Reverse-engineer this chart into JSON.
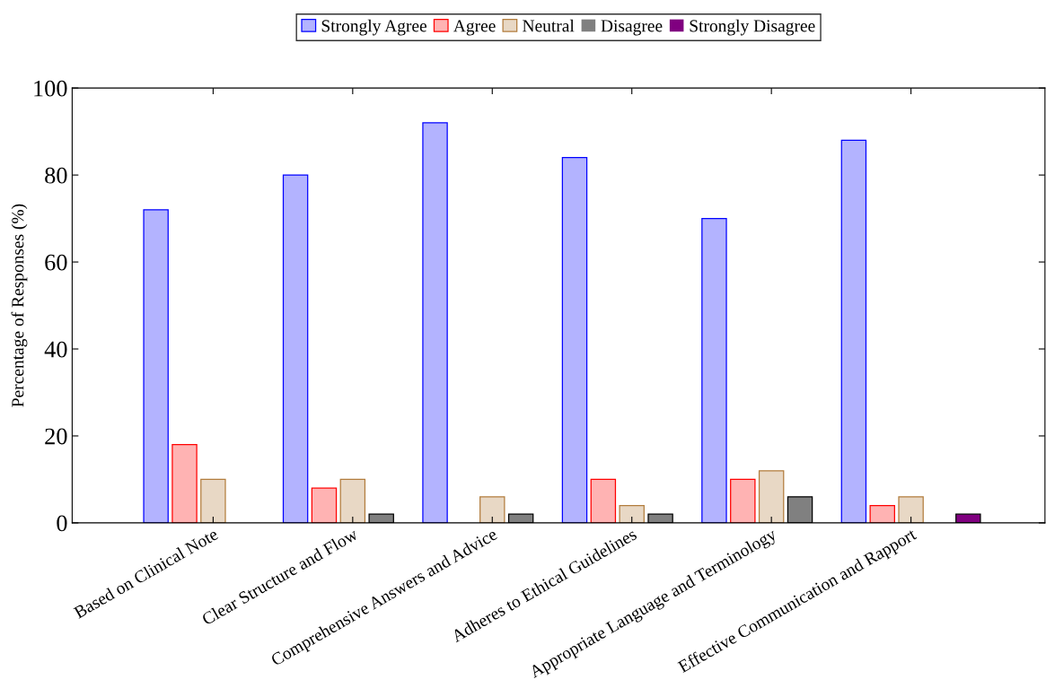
{
  "chart_data": {
    "type": "bar",
    "ylabel": "Percentage of Responses (%)",
    "categories": [
      "Based on Clinical Note",
      "Clear Structure and Flow",
      "Comprehensive Answers and Advice",
      "Adheres to Ethical Guidelines",
      "Appropriate Language and Terminology",
      "Effective Communication and Rapport"
    ],
    "series": [
      {
        "name": "Strongly Agree",
        "color": "#b3b3ff",
        "values": [
          72,
          80,
          92,
          84,
          70,
          88
        ]
      },
      {
        "name": "Agree",
        "color": "#ffb3b3",
        "values": [
          18,
          8,
          0,
          10,
          10,
          4
        ]
      },
      {
        "name": "Neutral",
        "color": "#e8d8c5",
        "values": [
          10,
          10,
          6,
          4,
          12,
          6
        ]
      },
      {
        "name": "Disagree",
        "color": "#808080",
        "values": [
          0,
          2,
          2,
          2,
          6,
          0
        ]
      },
      {
        "name": "Strongly Disagree",
        "color": "#800080",
        "values": [
          0,
          0,
          0,
          0,
          0,
          2
        ]
      }
    ],
    "ylim": [
      0,
      100
    ],
    "yticks": [
      0,
      20,
      40,
      60,
      80,
      100
    ],
    "grid": false,
    "legend": "top"
  }
}
